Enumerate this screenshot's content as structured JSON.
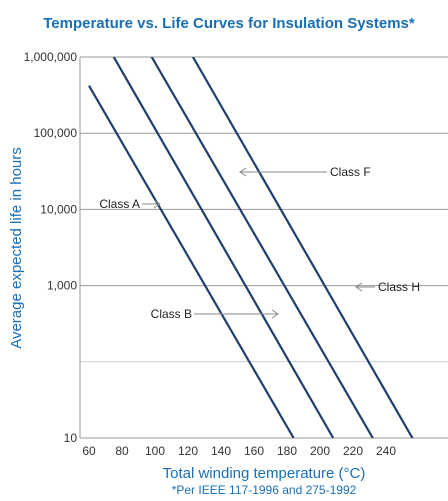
{
  "chart_data": {
    "type": "line",
    "title": "Temperature vs. Life Curves for Insulation Systems*",
    "xlabel": "Total winding temperature (°C)",
    "ylabel": "Average expected life in hours",
    "footnote": "*Per IEEE 117-1996 and 275-1992",
    "x_scale": "linear",
    "y_scale": "log",
    "xlim": [
      55,
      255
    ],
    "ylim": [
      10,
      1000000
    ],
    "x_ticks": [
      "60",
      "80",
      "100",
      "120",
      "140",
      "160",
      "180",
      "200",
      "220",
      "240"
    ],
    "y_ticks": [
      "1,000,000",
      "100,000",
      "10,000",
      "1,000",
      "10"
    ],
    "grid": "horizontal",
    "colors": {
      "title": "#1a6fb5",
      "lines": "#1f3f6e",
      "grid": "#9a9a9a",
      "annotation_arrow": "#888888"
    },
    "series": [
      {
        "name": "Class A",
        "x": [
          60,
          184
        ],
        "y": [
          420000,
          10
        ]
      },
      {
        "name": "Class B",
        "x": [
          75,
          208
        ],
        "y": [
          1000000,
          10
        ]
      },
      {
        "name": "Class F",
        "x": [
          98,
          232
        ],
        "y": [
          1000000,
          10
        ]
      },
      {
        "name": "Class H",
        "x": [
          123,
          256
        ],
        "y": [
          1000000,
          10
        ]
      }
    ],
    "annotations": [
      {
        "text": "Class A",
        "arrow_to": [
          134,
          42000
        ]
      },
      {
        "text": "Class B",
        "arrow_to": [
          173,
          2800
        ]
      },
      {
        "text": "Class F",
        "arrow_to": [
          141,
          62000
        ]
      },
      {
        "text": "Class H",
        "arrow_to": [
          222,
          4500
        ]
      }
    ]
  }
}
